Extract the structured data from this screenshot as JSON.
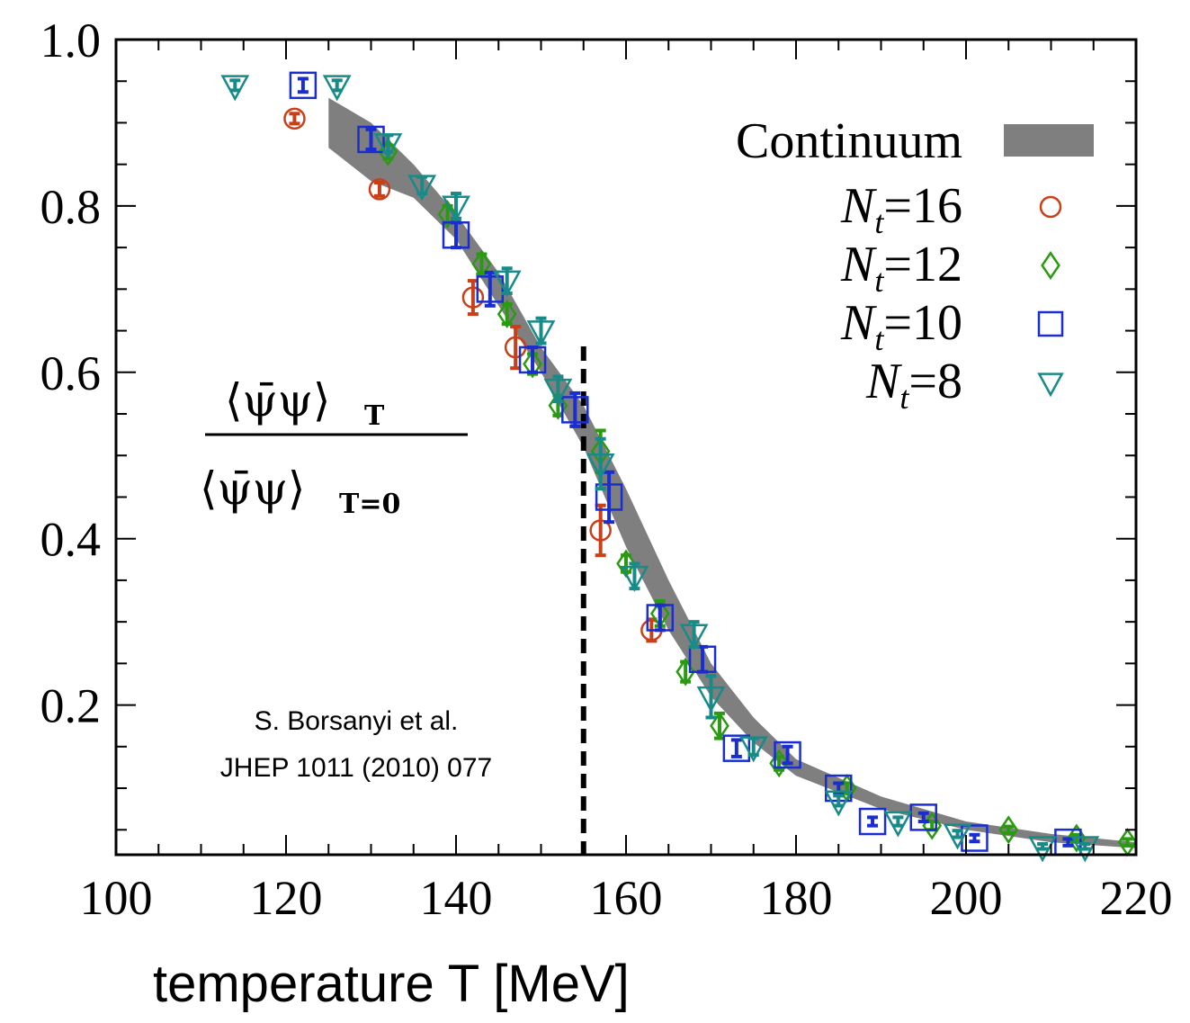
{
  "chart_data": {
    "type": "scatter",
    "xlim": [
      100,
      220
    ],
    "ylim": [
      0.02,
      1.0
    ],
    "x_ticks": [
      "100",
      "120",
      "140",
      "160",
      "180",
      "200",
      "220"
    ],
    "y_ticks": [
      "1.0",
      "0.8",
      "0.6",
      "0.4",
      "0.2"
    ],
    "xlabel": "temperature T [MeV]",
    "ylabel_formula": {
      "numerator": "⟨ψ̄ψ⟩",
      "numerator_sub": "T",
      "denominator": "⟨ψ̄ψ⟩",
      "denominator_sub": "T=0"
    },
    "annotation": [
      "S. Borsanyi et al.",
      "JHEP 1011 (2010) 077"
    ],
    "vertical_line": {
      "x": 155,
      "style": "dashed",
      "color": "#000000"
    },
    "legend_position": "top-right",
    "band": {
      "name": "Continuum",
      "color": "#7f7f7f",
      "x": [
        125,
        130,
        135,
        140,
        145,
        150,
        155,
        160,
        165,
        170,
        175,
        180,
        190,
        200,
        210,
        220
      ],
      "lower": [
        0.87,
        0.83,
        0.81,
        0.76,
        0.68,
        0.6,
        0.51,
        0.39,
        0.29,
        0.21,
        0.155,
        0.115,
        0.075,
        0.05,
        0.035,
        0.028
      ],
      "upper": [
        0.93,
        0.9,
        0.85,
        0.79,
        0.72,
        0.63,
        0.56,
        0.46,
        0.35,
        0.25,
        0.185,
        0.135,
        0.09,
        0.06,
        0.045,
        0.035
      ]
    },
    "series": [
      {
        "name": "N_t=16",
        "label_main": "N",
        "label_sub": "t",
        "label_rest": "=16",
        "marker": "circle",
        "color": "#c8401a",
        "points": [
          {
            "x": 121,
            "y": 0.905,
            "err": 0.006
          },
          {
            "x": 131,
            "y": 0.82,
            "err": 0.008
          },
          {
            "x": 142,
            "y": 0.69,
            "err": 0.02
          },
          {
            "x": 147,
            "y": 0.63,
            "err": 0.025
          },
          {
            "x": 157,
            "y": 0.41,
            "err": 0.03
          },
          {
            "x": 163,
            "y": 0.29,
            "err": 0.013
          }
        ]
      },
      {
        "name": "N_t=12",
        "label_main": "N",
        "label_sub": "t",
        "label_rest": "=12",
        "marker": "diamond",
        "color": "#2a9a10",
        "points": [
          {
            "x": 132,
            "y": 0.865,
            "err": 0.008
          },
          {
            "x": 139,
            "y": 0.79,
            "err": 0.01
          },
          {
            "x": 143,
            "y": 0.73,
            "err": 0.012
          },
          {
            "x": 146,
            "y": 0.67,
            "err": 0.012
          },
          {
            "x": 149,
            "y": 0.61,
            "err": 0.012
          },
          {
            "x": 152,
            "y": 0.56,
            "err": 0.012
          },
          {
            "x": 157,
            "y": 0.505,
            "err": 0.025
          },
          {
            "x": 160,
            "y": 0.37,
            "err": 0.01
          },
          {
            "x": 164,
            "y": 0.31,
            "err": 0.015
          },
          {
            "x": 167,
            "y": 0.24,
            "err": 0.012
          },
          {
            "x": 171,
            "y": 0.175,
            "err": 0.015
          },
          {
            "x": 178,
            "y": 0.13,
            "err": 0.008
          },
          {
            "x": 186,
            "y": 0.1,
            "err": 0.006
          },
          {
            "x": 196,
            "y": 0.055,
            "err": 0.005
          },
          {
            "x": 205,
            "y": 0.05,
            "err": 0.004
          },
          {
            "x": 213,
            "y": 0.04,
            "err": 0.004
          },
          {
            "x": 219,
            "y": 0.035,
            "err": 0.004
          }
        ]
      },
      {
        "name": "N_t=10",
        "label_main": "N",
        "label_sub": "t",
        "label_rest": "=10",
        "marker": "square",
        "color": "#1a2ed0",
        "points": [
          {
            "x": 122,
            "y": 0.945,
            "err": 0.008
          },
          {
            "x": 130,
            "y": 0.88,
            "err": 0.012
          },
          {
            "x": 140,
            "y": 0.765,
            "err": 0.015
          },
          {
            "x": 144,
            "y": 0.7,
            "err": 0.02
          },
          {
            "x": 149,
            "y": 0.615,
            "err": 0.015
          },
          {
            "x": 154,
            "y": 0.555,
            "err": 0.02
          },
          {
            "x": 158,
            "y": 0.45,
            "err": 0.03
          },
          {
            "x": 164,
            "y": 0.305,
            "err": 0.015
          },
          {
            "x": 169,
            "y": 0.255,
            "err": 0.015
          },
          {
            "x": 173,
            "y": 0.148,
            "err": 0.01
          },
          {
            "x": 179,
            "y": 0.14,
            "err": 0.01
          },
          {
            "x": 185,
            "y": 0.1,
            "err": 0.006
          },
          {
            "x": 189,
            "y": 0.06,
            "err": 0.005
          },
          {
            "x": 195,
            "y": 0.065,
            "err": 0.005
          },
          {
            "x": 201,
            "y": 0.04,
            "err": 0.004
          },
          {
            "x": 212,
            "y": 0.035,
            "err": 0.004
          }
        ]
      },
      {
        "name": "N_t=8",
        "label_main": "N",
        "label_sub": "t",
        "label_rest": "=8",
        "marker": "triangle-down",
        "color": "#188a88",
        "points": [
          {
            "x": 114,
            "y": 0.945,
            "err": 0.006
          },
          {
            "x": 126,
            "y": 0.945,
            "err": 0.006
          },
          {
            "x": 132,
            "y": 0.875,
            "err": 0.01
          },
          {
            "x": 136,
            "y": 0.825,
            "err": 0.01
          },
          {
            "x": 140,
            "y": 0.8,
            "err": 0.015
          },
          {
            "x": 146,
            "y": 0.71,
            "err": 0.015
          },
          {
            "x": 150,
            "y": 0.65,
            "err": 0.015
          },
          {
            "x": 152,
            "y": 0.58,
            "err": 0.015
          },
          {
            "x": 157,
            "y": 0.49,
            "err": 0.03
          },
          {
            "x": 161,
            "y": 0.355,
            "err": 0.015
          },
          {
            "x": 168,
            "y": 0.285,
            "err": 0.015
          },
          {
            "x": 170,
            "y": 0.21,
            "err": 0.025
          },
          {
            "x": 175,
            "y": 0.15,
            "err": 0.01
          },
          {
            "x": 185,
            "y": 0.085,
            "err": 0.006
          },
          {
            "x": 192,
            "y": 0.06,
            "err": 0.005
          },
          {
            "x": 199,
            "y": 0.045,
            "err": 0.004
          },
          {
            "x": 209,
            "y": 0.03,
            "err": 0.003
          },
          {
            "x": 214,
            "y": 0.03,
            "err": 0.003
          }
        ]
      }
    ]
  }
}
